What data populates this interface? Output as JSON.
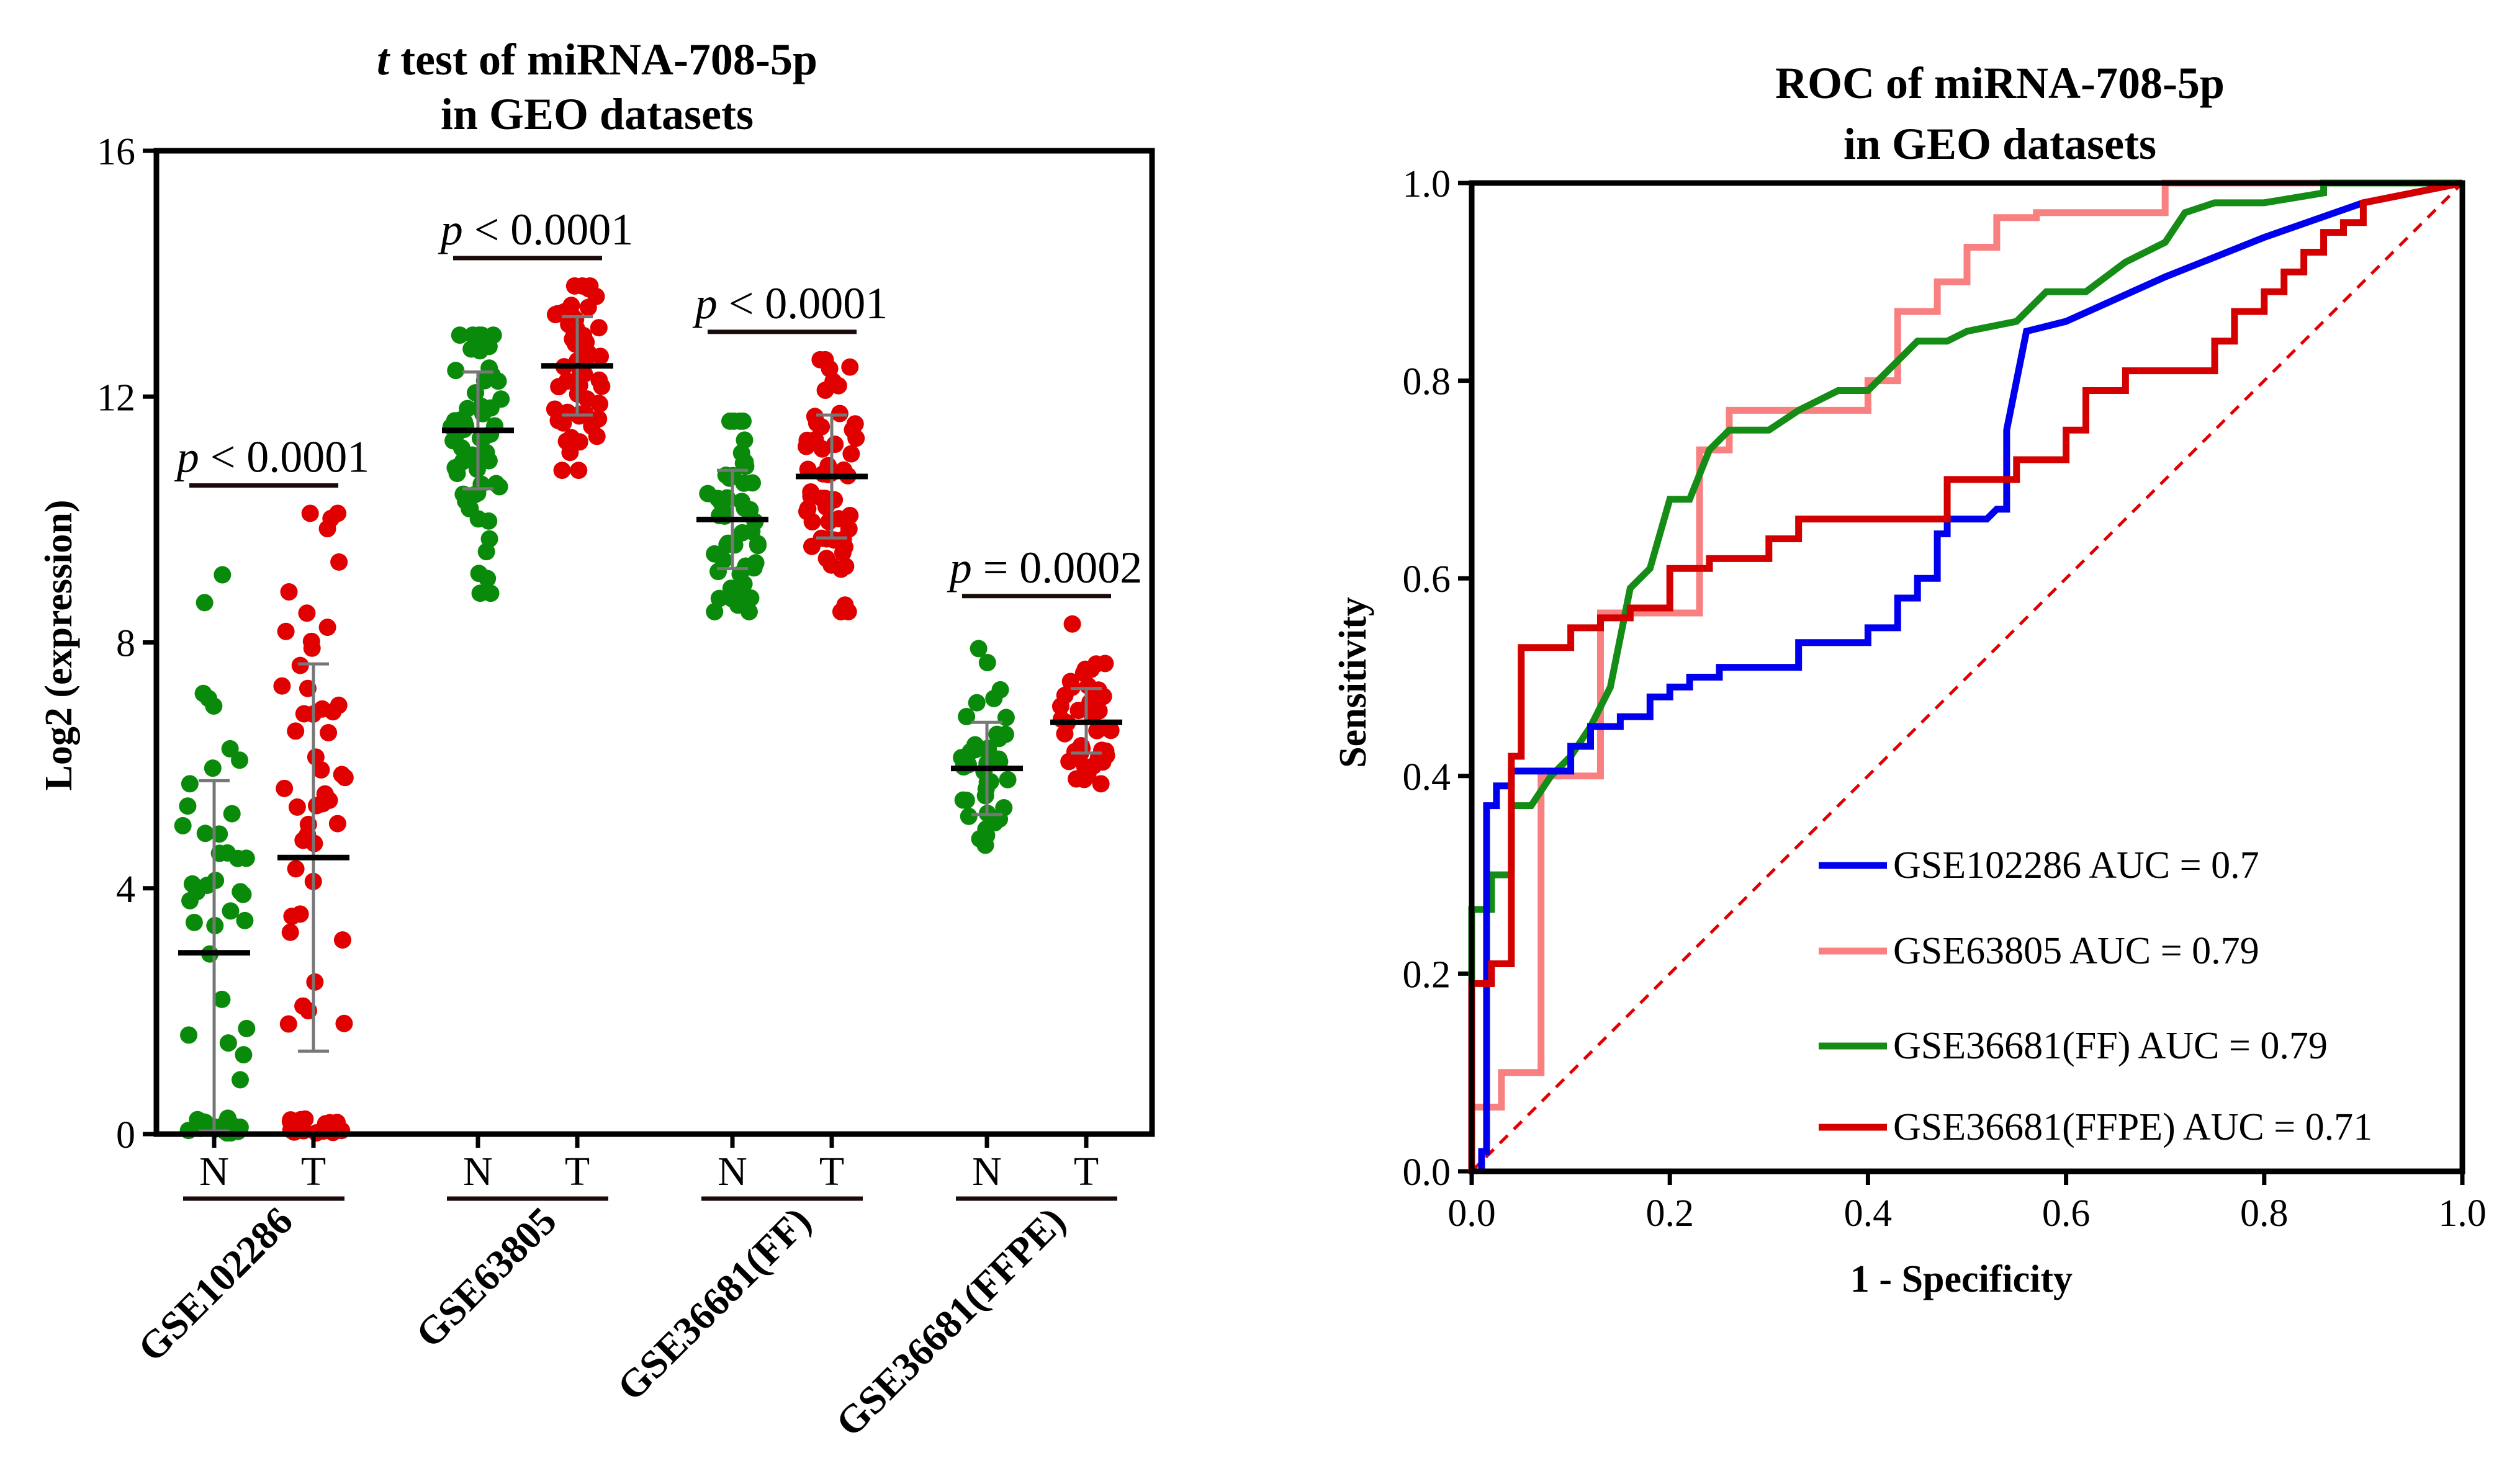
{
  "colors": {
    "N": "#0a8a0a",
    "T": "#e00000",
    "errorbar": "#777777"
  },
  "chart_data": [
    {
      "type": "scatter",
      "title_line1_italic": "t",
      "title_line1_rest": " test of miRNA-708-5p",
      "title_line2": "in GEO datasets",
      "ylabel": "Log2 (expression)",
      "xlabel": "",
      "ylim": [
        0,
        16
      ],
      "yticks": [
        "0",
        "4",
        "8",
        "12",
        "16"
      ],
      "groups": [
        {
          "name": "GSE102286",
          "N": {
            "mean": 2.95,
            "sd_low": 0.05,
            "sd_high": 5.75,
            "range": [
              0.02,
              9.1
            ],
            "n": 55,
            "label": "N"
          },
          "T": {
            "mean": 4.5,
            "sd_low": 1.35,
            "sd_high": 7.65,
            "range": [
              0.02,
              10.1
            ],
            "n": 70,
            "label": "T"
          },
          "p_italic": "p",
          "p_rest": " < 0.0001"
        },
        {
          "name": "GSE63805",
          "N": {
            "mean": 11.45,
            "sd_low": 10.5,
            "sd_high": 12.4,
            "range": [
              8.8,
              13.0
            ],
            "n": 60,
            "label": "N"
          },
          "T": {
            "mean": 12.5,
            "sd_low": 11.7,
            "sd_high": 13.3,
            "range": [
              10.8,
              13.8
            ],
            "n": 60,
            "label": "T"
          },
          "p_italic": "p",
          "p_rest": " < 0.0001"
        },
        {
          "name": "GSE36681(FF)",
          "N": {
            "mean": 10.0,
            "sd_low": 9.2,
            "sd_high": 10.8,
            "range": [
              8.5,
              11.6
            ],
            "n": 50,
            "label": "N"
          },
          "T": {
            "mean": 10.7,
            "sd_low": 9.7,
            "sd_high": 11.7,
            "range": [
              8.5,
              12.6
            ],
            "n": 55,
            "label": "T"
          },
          "p_italic": "p",
          "p_rest": " < 0.0001"
        },
        {
          "name": "GSE36681(FFPE)",
          "N": {
            "mean": 5.95,
            "sd_low": 5.2,
            "sd_high": 6.7,
            "range": [
              4.7,
              7.9
            ],
            "n": 40,
            "label": "N"
          },
          "T": {
            "mean": 6.7,
            "sd_low": 6.2,
            "sd_high": 7.25,
            "range": [
              5.7,
              8.3
            ],
            "n": 40,
            "label": "T"
          },
          "p_italic": "p",
          "p_rest": " = 0.0002"
        }
      ]
    },
    {
      "type": "line",
      "title_line1": "ROC of miRNA-708-5p",
      "title_line2": "in GEO  datasets",
      "xlabel": "1 - Specificity",
      "ylabel": "Sensitivity",
      "xlim": [
        0,
        1
      ],
      "ylim": [
        0,
        1
      ],
      "xticks": [
        "0.0",
        "0.2",
        "0.4",
        "0.6",
        "0.8",
        "1.0"
      ],
      "yticks": [
        "0.0",
        "0.2",
        "0.4",
        "0.6",
        "0.8",
        "1.0"
      ],
      "diagonal": true,
      "series": [
        {
          "name": "GSE102286 AUC = 0.7",
          "color": "#0000ee",
          "x": [
            0.01,
            0.01,
            0.015,
            0.015,
            0.025,
            0.025,
            0.04,
            0.04,
            0.1,
            0.1,
            0.12,
            0.12,
            0.15,
            0.15,
            0.18,
            0.18,
            0.2,
            0.2,
            0.22,
            0.22,
            0.25,
            0.25,
            0.33,
            0.33,
            0.4,
            0.4,
            0.43,
            0.43,
            0.45,
            0.45,
            0.47,
            0.47,
            0.48,
            0.48,
            0.52,
            0.53,
            0.54,
            0.54,
            0.56,
            0.6,
            0.7,
            0.8,
            0.9,
            1.0
          ],
          "y": [
            0.0,
            0.02,
            0.02,
            0.37,
            0.37,
            0.39,
            0.39,
            0.405,
            0.405,
            0.43,
            0.43,
            0.45,
            0.45,
            0.46,
            0.46,
            0.48,
            0.48,
            0.49,
            0.49,
            0.5,
            0.5,
            0.51,
            0.51,
            0.535,
            0.535,
            0.55,
            0.55,
            0.58,
            0.58,
            0.6,
            0.6,
            0.645,
            0.645,
            0.66,
            0.66,
            0.67,
            0.67,
            0.75,
            0.85,
            0.86,
            0.905,
            0.945,
            0.98,
            1.0
          ]
        },
        {
          "name": "GSE63805 AUC = 0.79",
          "color": "#f88080",
          "x": [
            0.0,
            0.0,
            0.03,
            0.03,
            0.07,
            0.07,
            0.13,
            0.13,
            0.23,
            0.23,
            0.26,
            0.26,
            0.4,
            0.4,
            0.43,
            0.43,
            0.47,
            0.47,
            0.5,
            0.5,
            0.53,
            0.53,
            0.57,
            0.57,
            0.7,
            0.7,
            1.0
          ],
          "y": [
            0.0,
            0.065,
            0.065,
            0.1,
            0.1,
            0.4,
            0.4,
            0.565,
            0.565,
            0.73,
            0.73,
            0.77,
            0.77,
            0.8,
            0.8,
            0.87,
            0.87,
            0.9,
            0.9,
            0.935,
            0.935,
            0.965,
            0.965,
            0.97,
            0.97,
            1.0,
            1.0
          ]
        },
        {
          "name": "GSE36681(FF) AUC = 0.79",
          "color": "#158c15",
          "x": [
            0.0,
            0.0,
            0.02,
            0.02,
            0.04,
            0.04,
            0.06,
            0.08,
            0.1,
            0.12,
            0.14,
            0.16,
            0.18,
            0.2,
            0.22,
            0.24,
            0.26,
            0.3,
            0.33,
            0.37,
            0.4,
            0.43,
            0.45,
            0.48,
            0.5,
            0.55,
            0.58,
            0.62,
            0.66,
            0.7,
            0.72,
            0.75,
            0.8,
            0.86,
            0.86,
            1.0
          ],
          "y": [
            0.0,
            0.265,
            0.265,
            0.3,
            0.3,
            0.37,
            0.37,
            0.4,
            0.42,
            0.45,
            0.49,
            0.59,
            0.61,
            0.68,
            0.68,
            0.73,
            0.75,
            0.75,
            0.77,
            0.79,
            0.79,
            0.82,
            0.84,
            0.84,
            0.85,
            0.86,
            0.89,
            0.89,
            0.92,
            0.94,
            0.97,
            0.98,
            0.98,
            0.99,
            1.0,
            1.0
          ]
        },
        {
          "name": "GSE36681(FFPE) AUC = 0.71",
          "color": "#d40000",
          "x": [
            0.0,
            0.0,
            0.02,
            0.02,
            0.04,
            0.04,
            0.05,
            0.05,
            0.1,
            0.1,
            0.13,
            0.13,
            0.16,
            0.16,
            0.2,
            0.2,
            0.24,
            0.24,
            0.3,
            0.3,
            0.33,
            0.33,
            0.48,
            0.48,
            0.55,
            0.55,
            0.6,
            0.6,
            0.62,
            0.62,
            0.66,
            0.66,
            0.75,
            0.75,
            0.77,
            0.77,
            0.8,
            0.8,
            0.82,
            0.82,
            0.84,
            0.84,
            0.86,
            0.86,
            0.88,
            0.88,
            0.9,
            0.9,
            1.0
          ],
          "y": [
            0.0,
            0.19,
            0.19,
            0.21,
            0.21,
            0.42,
            0.42,
            0.53,
            0.53,
            0.55,
            0.55,
            0.56,
            0.56,
            0.57,
            0.57,
            0.61,
            0.61,
            0.62,
            0.62,
            0.64,
            0.64,
            0.66,
            0.66,
            0.7,
            0.7,
            0.72,
            0.72,
            0.75,
            0.75,
            0.79,
            0.79,
            0.81,
            0.81,
            0.84,
            0.84,
            0.87,
            0.87,
            0.89,
            0.89,
            0.91,
            0.91,
            0.93,
            0.93,
            0.95,
            0.95,
            0.96,
            0.96,
            0.98,
            1.0
          ]
        }
      ]
    }
  ]
}
